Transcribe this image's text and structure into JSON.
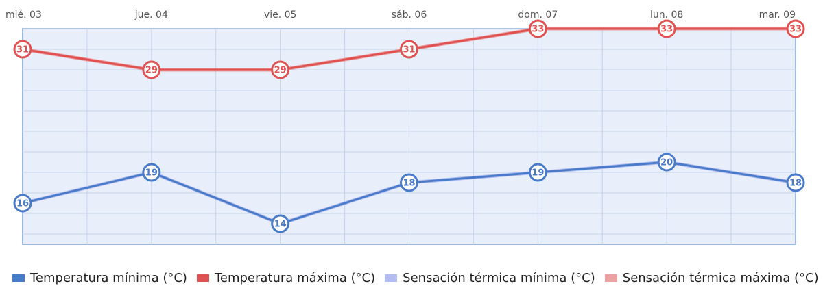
{
  "chart_data": {
    "type": "line",
    "categories": [
      "mié. 03",
      "jue. 04",
      "vie. 05",
      "sáb. 06",
      "dom. 07",
      "lun. 08",
      "mar. 09"
    ],
    "series": [
      {
        "name": "Temperatura mínima (°C)",
        "color": "#4a7bc8",
        "values": [
          16,
          19,
          14,
          18,
          19,
          20,
          18
        ]
      },
      {
        "name": "Temperatura máxima (°C)",
        "color": "#e05252",
        "values": [
          31,
          29,
          29,
          31,
          33,
          33,
          33
        ]
      },
      {
        "name": "Sensación térmica mínima (°C)",
        "color": "#b3bdf2",
        "values": [
          16,
          19,
          14,
          18,
          19,
          20,
          18
        ]
      },
      {
        "name": "Sensación térmica máxima (°C)",
        "color": "#eaa3a3",
        "values": [
          31,
          29,
          29,
          31,
          33,
          33,
          33
        ]
      }
    ],
    "ylim": [
      12,
      33
    ],
    "yticks": [
      13,
      15,
      17,
      19,
      21,
      23,
      25,
      27,
      29,
      31,
      33
    ],
    "grid": true
  }
}
